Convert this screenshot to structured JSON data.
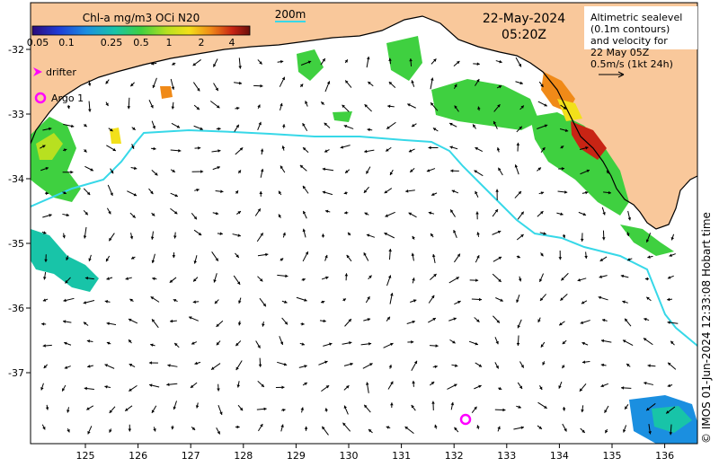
{
  "colorbar": {
    "title": "Chl-a mg/m3 OCi N20",
    "ticks": [
      "0.05",
      "0.1",
      "0.25",
      "0.5",
      "1",
      "2",
      "4"
    ]
  },
  "scale_label": "200m",
  "datetime": {
    "date": "22-May-2024",
    "time": "05:20Z"
  },
  "info_box": {
    "lines": [
      "Altimetric sealevel",
      "(0.1m contours)",
      "and velocity for",
      "22 May 05Z",
      "0.5m/s (1kt 24h)"
    ]
  },
  "legend": {
    "drifter": "drifter",
    "argo": "Argo 1"
  },
  "axes": {
    "x_ticks": [
      "125",
      "126",
      "127",
      "128",
      "129",
      "130",
      "131",
      "132",
      "133",
      "134",
      "135",
      "136"
    ],
    "y_ticks": [
      "-32",
      "-33",
      "-34",
      "-35",
      "-36",
      "-37"
    ]
  },
  "credit": "© IMOS 01-Jun-2024 12:33:08 Hobart time",
  "colors": {
    "land": "#f9c89b",
    "isobath": "#37d8e8",
    "argo": "#ff00ff",
    "drifter": "#ff00ff"
  }
}
